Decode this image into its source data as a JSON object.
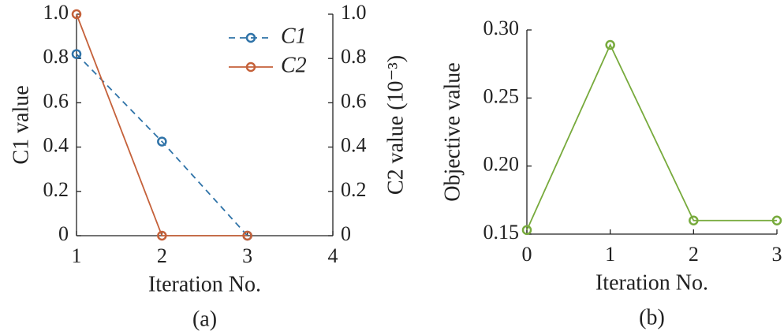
{
  "chart_data": [
    {
      "type": "line",
      "caption": "(a)",
      "xlabel": "Iteration No.",
      "ylabel": "C1 value",
      "y2label": "C2 value (10⁻³)",
      "x": [
        1,
        2,
        3
      ],
      "xlim": [
        1,
        4
      ],
      "xticks": [
        1,
        2,
        3,
        4
      ],
      "ylim": [
        0,
        1
      ],
      "yticks": [
        0,
        0.2,
        0.4,
        0.6,
        0.8,
        {
          "value": 1,
          "label": "1.0"
        }
      ],
      "y2lim": [
        0,
        1
      ],
      "y2ticks": [
        0,
        0.2,
        0.4,
        0.6,
        0.8,
        {
          "value": 1,
          "label": "1.0"
        }
      ],
      "legend": "upper center",
      "series": [
        {
          "name": "C1",
          "color": "#2f73a8",
          "linestyle": "dashed",
          "values": [
            0.82,
            0.425,
            0
          ]
        },
        {
          "name": "C2",
          "color": "#c5613a",
          "linestyle": "solid",
          "axis": "y2",
          "values": [
            1,
            0,
            0
          ]
        }
      ]
    },
    {
      "type": "line",
      "caption": "(b)",
      "xlabel": "Iteration No.",
      "ylabel": "Objective value",
      "x": [
        0,
        1,
        2,
        3
      ],
      "xlim": [
        0,
        3
      ],
      "xticks": [
        0,
        1,
        2,
        3
      ],
      "ylim": [
        0.15,
        0.3
      ],
      "yticks": [
        0.15,
        {
          "value": 0.2,
          "label": "0.20"
        },
        0.25,
        {
          "value": 0.3,
          "label": "0.30"
        }
      ],
      "series": [
        {
          "color": "#77aa3c",
          "linestyle": "solid",
          "values": [
            0.153,
            0.289,
            0.16,
            0.16
          ]
        }
      ]
    }
  ]
}
